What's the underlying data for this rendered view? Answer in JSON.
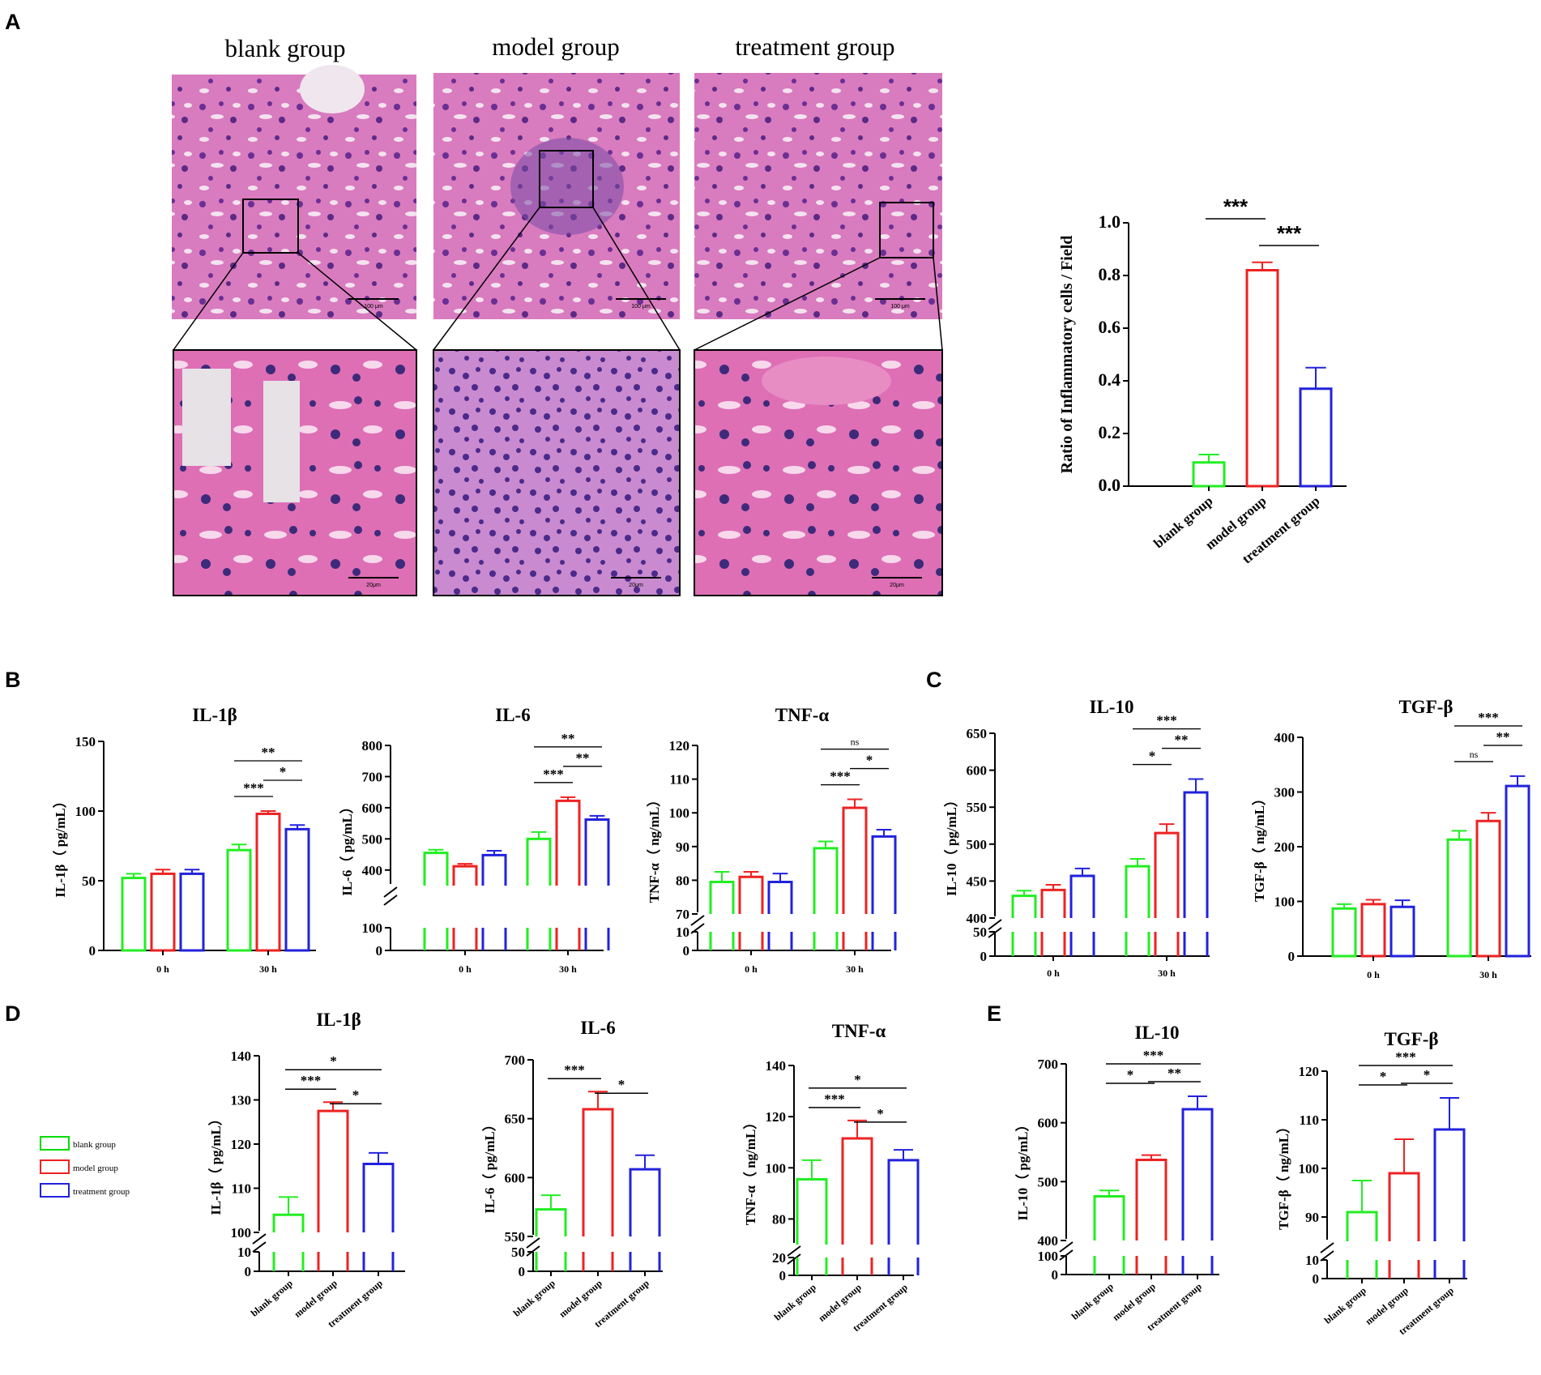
{
  "panel_labels": {
    "a": "A",
    "b": "B",
    "c": "C",
    "d": "D",
    "e": "E"
  },
  "micrographs": [
    {
      "title": "blank group",
      "scale_top": "100 μm",
      "scale_bottom": "20μm"
    },
    {
      "title": "model group",
      "scale_top": "100 μm",
      "scale_bottom": "20μm"
    },
    {
      "title": "treatment group",
      "scale_top": "100 μm",
      "scale_bottom": "20μm"
    }
  ],
  "legend": [
    {
      "label": "blank group",
      "color": "#00dd00"
    },
    {
      "label": "model group",
      "color": "#ee2222"
    },
    {
      "label": "treatment group",
      "color": "#2222dd"
    }
  ],
  "colors": {
    "blank": "#22ee22",
    "model": "#ee2222",
    "treatment": "#2222dd",
    "axis": "#000000"
  },
  "chart_data": [
    {
      "id": "A-inflammatory",
      "type": "bar",
      "title": "",
      "ylabel": "Ratio of Inflammatory cells / Field",
      "categories": [
        "blank group",
        "model group",
        "treatment group"
      ],
      "values": [
        0.09,
        0.82,
        0.37
      ],
      "errors": [
        0.03,
        0.03,
        0.08
      ],
      "ylim": [
        0,
        1.0
      ],
      "yticks": [
        "0.0",
        "0.2",
        "0.4",
        "0.6",
        "0.8",
        "1.0"
      ],
      "significance": [
        {
          "from": 0,
          "to": 1,
          "label": "***"
        },
        {
          "from": 1,
          "to": 2,
          "label": "***"
        }
      ]
    },
    {
      "id": "B-IL1b",
      "type": "bar",
      "title": "IL-1β",
      "ylabel": "IL-1β（ pg/mL）",
      "x": [
        "0 h",
        "30 h"
      ],
      "series": [
        {
          "values": [
            52,
            72
          ],
          "errors": [
            3,
            4
          ]
        },
        {
          "values": [
            55,
            98
          ],
          "errors": [
            3,
            2
          ]
        },
        {
          "values": [
            55,
            87
          ],
          "errors": [
            3,
            3
          ]
        }
      ],
      "ylim": [
        0,
        150
      ],
      "yticks": [
        "0",
        "50",
        "100",
        "150"
      ],
      "significance": [
        {
          "group": 1,
          "from": 0,
          "to": 1,
          "label": "***"
        },
        {
          "group": 1,
          "from": 1,
          "to": 2,
          "label": "*"
        },
        {
          "group": 1,
          "from": 0,
          "to": 2,
          "label": "**"
        }
      ]
    },
    {
      "id": "B-IL6",
      "type": "bar",
      "title": "IL-6",
      "ylabel": "IL-6（ pg/mL）",
      "x": [
        "0 h",
        "30 h"
      ],
      "series": [
        {
          "values": [
            455,
            500
          ],
          "errors": [
            10,
            22
          ]
        },
        {
          "values": [
            412,
            622
          ],
          "errors": [
            8,
            12
          ]
        },
        {
          "values": [
            448,
            562
          ],
          "errors": [
            14,
            12
          ]
        }
      ],
      "ylim": [
        350,
        800
      ],
      "axis_break": {
        "low_ticks": [
          "0",
          "100"
        ],
        "from": 100,
        "to": 350
      },
      "yticks": [
        "400",
        "500",
        "600",
        "700",
        "800"
      ],
      "significance": [
        {
          "group": 1,
          "from": 0,
          "to": 1,
          "label": "***"
        },
        {
          "group": 1,
          "from": 1,
          "to": 2,
          "label": "**"
        },
        {
          "group": 1,
          "from": 0,
          "to": 2,
          "label": "**"
        }
      ]
    },
    {
      "id": "B-TNFa",
      "type": "bar",
      "title": "TNF-α",
      "ylabel": "TNF-α（ ng/mL）",
      "x": [
        "0 h",
        "30 h"
      ],
      "series": [
        {
          "values": [
            79.5,
            89.5
          ],
          "errors": [
            3,
            2
          ]
        },
        {
          "values": [
            81,
            101.5
          ],
          "errors": [
            1.5,
            2.5
          ]
        },
        {
          "values": [
            79.5,
            93
          ],
          "errors": [
            2.5,
            2
          ]
        }
      ],
      "ylim": [
        70,
        120
      ],
      "axis_break": {
        "low_ticks": [
          "0",
          "10"
        ],
        "from": 10,
        "to": 70
      },
      "yticks": [
        "70",
        "80",
        "90",
        "100",
        "110",
        "120"
      ],
      "significance": [
        {
          "group": 1,
          "from": 0,
          "to": 1,
          "label": "***"
        },
        {
          "group": 1,
          "from": 1,
          "to": 2,
          "label": "*"
        },
        {
          "group": 1,
          "from": 0,
          "to": 2,
          "label": "ns"
        }
      ]
    },
    {
      "id": "C-IL10",
      "type": "bar",
      "title": "IL-10",
      "ylabel": "IL-10（ pg/mL）",
      "x": [
        "0 h",
        "30 h"
      ],
      "series": [
        {
          "values": [
            430,
            470
          ],
          "errors": [
            7,
            10
          ]
        },
        {
          "values": [
            438,
            515
          ],
          "errors": [
            7,
            12
          ]
        },
        {
          "values": [
            457,
            570
          ],
          "errors": [
            10,
            18
          ]
        }
      ],
      "ylim": [
        400,
        650
      ],
      "axis_break": {
        "low_ticks": [
          "0",
          "50"
        ],
        "from": 50,
        "to": 400
      },
      "yticks": [
        "400",
        "450",
        "500",
        "550",
        "600",
        "650"
      ],
      "significance": [
        {
          "group": 1,
          "from": 0,
          "to": 1,
          "label": "*"
        },
        {
          "group": 1,
          "from": 1,
          "to": 2,
          "label": "**"
        },
        {
          "group": 1,
          "from": 0,
          "to": 2,
          "label": "***"
        }
      ]
    },
    {
      "id": "C-TGFb",
      "type": "bar",
      "title": "TGF-β",
      "ylabel": "TGF-β（ ng/mL）",
      "x": [
        "0 h",
        "30 h"
      ],
      "series": [
        {
          "values": [
            87,
            213
          ],
          "errors": [
            8,
            16
          ]
        },
        {
          "values": [
            95,
            247
          ],
          "errors": [
            8,
            15
          ]
        },
        {
          "values": [
            90,
            311
          ],
          "errors": [
            12,
            18
          ]
        }
      ],
      "ylim": [
        0,
        400
      ],
      "yticks": [
        "0",
        "100",
        "200",
        "300",
        "400"
      ],
      "significance": [
        {
          "group": 1,
          "from": 0,
          "to": 1,
          "label": "ns"
        },
        {
          "group": 1,
          "from": 1,
          "to": 2,
          "label": "**"
        },
        {
          "group": 1,
          "from": 0,
          "to": 2,
          "label": "***"
        }
      ]
    },
    {
      "id": "D-IL1b",
      "type": "bar",
      "title": "IL-1β",
      "ylabel": "IL-1β（ pg/mL）",
      "categories": [
        "blank group",
        "model group",
        "treatment group"
      ],
      "values": [
        104,
        127.5,
        115.5
      ],
      "errors": [
        4,
        2,
        2.5
      ],
      "ylim": [
        100,
        140
      ],
      "axis_break": {
        "low_ticks": [
          "0",
          "10"
        ],
        "from": 10,
        "to": 100
      },
      "yticks": [
        "100",
        "110",
        "120",
        "130",
        "140"
      ],
      "significance": [
        {
          "from": 0,
          "to": 1,
          "label": "***"
        },
        {
          "from": 1,
          "to": 2,
          "label": "*"
        },
        {
          "from": 0,
          "to": 2,
          "label": "*"
        }
      ]
    },
    {
      "id": "D-IL6",
      "type": "bar",
      "title": "IL-6",
      "ylabel": "IL-6（ pg/mL）",
      "categories": [
        "blank group",
        "model group",
        "treatment group"
      ],
      "values": [
        573,
        658,
        607
      ],
      "errors": [
        12,
        15,
        12
      ],
      "ylim": [
        550,
        700
      ],
      "axis_break": {
        "low_ticks": [
          "0",
          "50"
        ],
        "from": 50,
        "to": 550
      },
      "yticks": [
        "550",
        "600",
        "650",
        "700"
      ],
      "significance": [
        {
          "from": 0,
          "to": 1,
          "label": "***"
        },
        {
          "from": 1,
          "to": 2,
          "label": "*"
        }
      ]
    },
    {
      "id": "D-TNFa",
      "type": "bar",
      "title": "TNF-α",
      "ylabel": "TNF-α（ ng/mL）",
      "categories": [
        "blank group",
        "model group",
        "treatment group"
      ],
      "values": [
        95.5,
        111.5,
        103
      ],
      "errors": [
        7.5,
        7,
        4
      ],
      "ylim": [
        70,
        140
      ],
      "axis_break": {
        "low_ticks": [
          "0",
          "20"
        ],
        "from": 20,
        "to": 70
      },
      "yticks": [
        "80",
        "100",
        "120",
        "140"
      ],
      "significance": [
        {
          "from": 0,
          "to": 1,
          "label": "***"
        },
        {
          "from": 1,
          "to": 2,
          "label": "*"
        },
        {
          "from": 0,
          "to": 2,
          "label": "*"
        }
      ]
    },
    {
      "id": "E-IL10",
      "type": "bar",
      "title": "IL-10",
      "ylabel": "IL-10（ pg/mL）",
      "categories": [
        "blank group",
        "model group",
        "treatment group"
      ],
      "values": [
        475,
        537,
        623
      ],
      "errors": [
        10,
        8,
        22
      ],
      "ylim": [
        400,
        700
      ],
      "axis_break": {
        "low_ticks": [
          "0",
          "100"
        ],
        "from": 100,
        "to": 400
      },
      "yticks": [
        "400",
        "500",
        "600",
        "700"
      ],
      "significance": [
        {
          "from": 0,
          "to": 1,
          "label": "*"
        },
        {
          "from": 1,
          "to": 2,
          "label": "**"
        },
        {
          "from": 0,
          "to": 2,
          "label": "***"
        }
      ]
    },
    {
      "id": "E-TGFb",
      "type": "bar",
      "title": "TGF-β",
      "ylabel": "TGF-β（ ng/mL）",
      "categories": [
        "blank group",
        "model group",
        "treatment group"
      ],
      "values": [
        91,
        99,
        108
      ],
      "errors": [
        6.5,
        7,
        6.5
      ],
      "ylim": [
        85,
        120
      ],
      "axis_break": {
        "low_ticks": [
          "0",
          "10"
        ],
        "from": 10,
        "to": 85
      },
      "yticks": [
        "90",
        "100",
        "110",
        "120"
      ],
      "significance": [
        {
          "from": 0,
          "to": 1,
          "label": "*"
        },
        {
          "from": 1,
          "to": 2,
          "label": "*"
        },
        {
          "from": 0,
          "to": 2,
          "label": "***"
        }
      ]
    }
  ]
}
